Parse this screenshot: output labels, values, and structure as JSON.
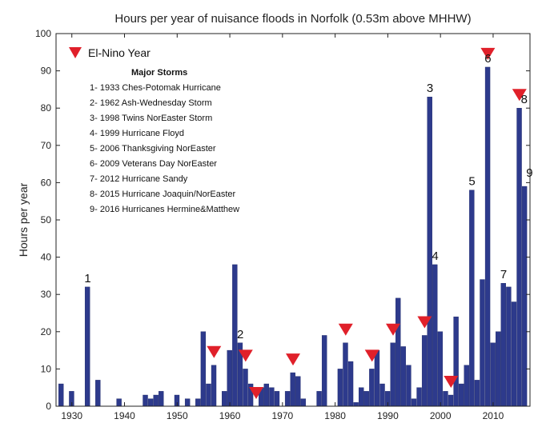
{
  "chart_data": {
    "type": "bar",
    "title": "Hours per year of nuisance floods in Norfolk (0.53m above MHHW)",
    "ylabel": "Hours per year",
    "xlabel": "",
    "xlim": [
      1927,
      2017
    ],
    "ylim": [
      0,
      100
    ],
    "x_ticks": [
      1930,
      1940,
      1950,
      1960,
      1970,
      1980,
      1990,
      2000,
      2010
    ],
    "y_ticks": [
      0,
      10,
      20,
      30,
      40,
      50,
      60,
      70,
      80,
      90,
      100
    ],
    "bar_color": "#2d3a8c",
    "marker_color": "#e0202a",
    "legend": {
      "elnino_label": "El-Nino Year",
      "storms_heading": "Major Storms",
      "storms": [
        "1- 1933 Ches-Potomak Hurricane",
        "2- 1962 Ash-Wednesday Storm",
        "3- 1998 Twins NorEaster Storm",
        "4- 1999 Hurricane Floyd",
        "5- 2006 Thanksgiving NorEaster",
        "6- 2009 Veterans Day NorEaster",
        "7- 2012 Hurricane Sandy",
        "8- 2015 Hurricane Joaquin/NorEaster",
        "9- 2016 Hurricanes Hermine&Matthew"
      ]
    },
    "series": [
      {
        "x": [
          1928,
          1929,
          1930,
          1931,
          1932,
          1933,
          1934,
          1935,
          1936,
          1937,
          1938,
          1939,
          1940,
          1941,
          1942,
          1943,
          1944,
          1945,
          1946,
          1947,
          1948,
          1949,
          1950,
          1951,
          1952,
          1953,
          1954,
          1955,
          1956,
          1957,
          1958,
          1959,
          1960,
          1961,
          1962,
          1963,
          1964,
          1965,
          1966,
          1967,
          1968,
          1969,
          1970,
          1971,
          1972,
          1973,
          1974,
          1975,
          1976,
          1977,
          1978,
          1979,
          1980,
          1981,
          1982,
          1983,
          1984,
          1985,
          1986,
          1987,
          1988,
          1989,
          1990,
          1991,
          1992,
          1993,
          1994,
          1995,
          1996,
          1997,
          1998,
          1999,
          2000,
          2001,
          2002,
          2003,
          2004,
          2005,
          2006,
          2007,
          2008,
          2009,
          2010,
          2011,
          2012,
          2013,
          2014,
          2015,
          2016
        ],
        "values": [
          6,
          0,
          4,
          0,
          0,
          32,
          0,
          7,
          0,
          0,
          0,
          2,
          0,
          0,
          0,
          0,
          3,
          2,
          3,
          4,
          0,
          0,
          3,
          0,
          2,
          0,
          2,
          20,
          6,
          11,
          0,
          4,
          15,
          38,
          17,
          10,
          6,
          0,
          5,
          6,
          5,
          4,
          0,
          4,
          9,
          8,
          2,
          0,
          0,
          4,
          19,
          0,
          0,
          10,
          17,
          12,
          1,
          5,
          4,
          10,
          15,
          6,
          4,
          17,
          29,
          16,
          11,
          2,
          5,
          19,
          83,
          38,
          20,
          4,
          3,
          24,
          6,
          11,
          58,
          7,
          34,
          91,
          17,
          20,
          33,
          32,
          28,
          80,
          59
        ]
      }
    ],
    "el_nino_years": [
      1957,
      1963,
      1965,
      1972,
      1982,
      1987,
      1991,
      1997,
      2002,
      2009,
      2015
    ],
    "storm_labels": [
      {
        "text": "1",
        "year": 1933
      },
      {
        "text": "2",
        "year": 1962
      },
      {
        "text": "3",
        "year": 1998
      },
      {
        "text": "4",
        "year": 1999
      },
      {
        "text": "5",
        "year": 2006
      },
      {
        "text": "6",
        "year": 2009
      },
      {
        "text": "7",
        "year": 2012
      },
      {
        "text": "8",
        "year": 2015
      },
      {
        "text": "9",
        "year": 2016
      }
    ]
  }
}
